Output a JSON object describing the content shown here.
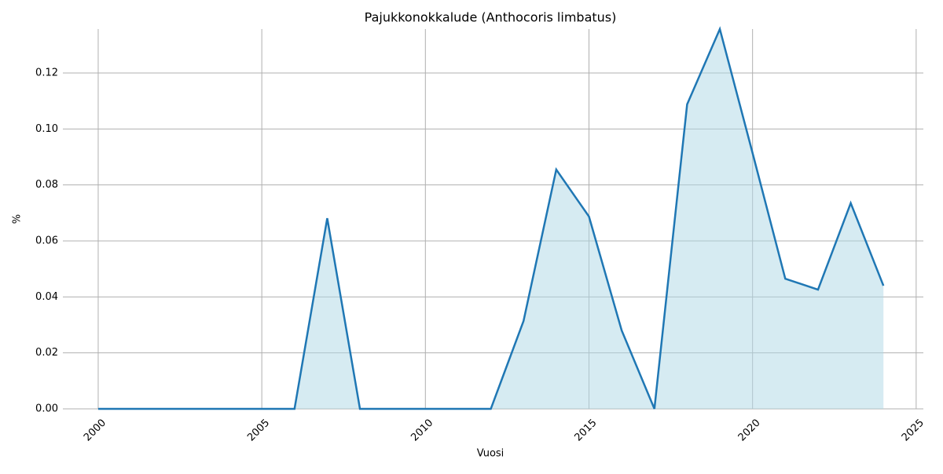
{
  "chart_data": {
    "type": "area",
    "title": "Pajukkonokkalude (Anthocoris limbatus)",
    "x_label": "Vuosi",
    "y_label": "%",
    "x": [
      2000,
      2001,
      2002,
      2003,
      2004,
      2005,
      2006,
      2007,
      2008,
      2009,
      2010,
      2011,
      2012,
      2013,
      2014,
      2015,
      2016,
      2017,
      2018,
      2019,
      2020,
      2021,
      2022,
      2023,
      2024
    ],
    "series": [
      {
        "name": "Pajukkonokkalude",
        "color": "#1f77b4",
        "fill": "#add8e6",
        "values": [
          0,
          0,
          0,
          0,
          0,
          0,
          0,
          0.0681,
          0,
          0,
          0,
          0,
          0,
          0.0314,
          0.0855,
          0.0687,
          0.028,
          0,
          0.1088,
          0.1357,
          0.0914,
          0.0465,
          0.0426,
          0.0735,
          0.044
        ]
      }
    ],
    "xlim": [
      1998.92,
      2025.22
    ],
    "xticks": [
      2000,
      2005,
      2010,
      2015,
      2020,
      2025
    ],
    "ylim": [
      0,
      0.1357
    ],
    "yticks": [
      {
        "value": 0,
        "label": "0.00"
      },
      {
        "value": 0.02,
        "label": "0.02"
      },
      {
        "value": 0.04,
        "label": "0.04"
      },
      {
        "value": 0.06,
        "label": "0.06"
      },
      {
        "value": 0.08,
        "label": "0.08"
      },
      {
        "value": 0.1,
        "label": "0.10"
      },
      {
        "value": 0.12,
        "label": "0.12"
      }
    ],
    "grid": true
  }
}
